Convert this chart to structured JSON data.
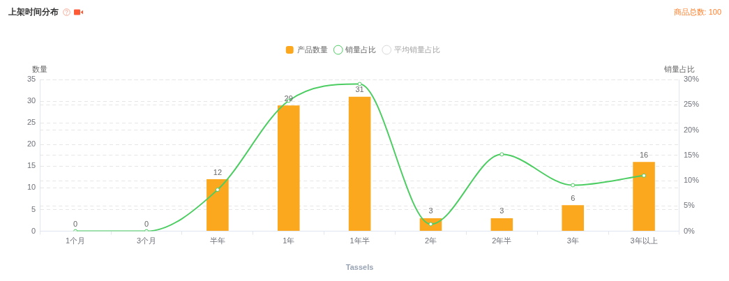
{
  "chart_data": {
    "type": "bar",
    "title": "上架时间分布",
    "annotations": [
      "商品总数: 100"
    ],
    "xlabel": "Tassels",
    "ylabel": "数量",
    "y2label": "销量占比",
    "categories": [
      "1个月",
      "3个月",
      "半年",
      "1年",
      "1年半",
      "2年",
      "2年半",
      "3年",
      "3年以上"
    ],
    "series": [
      {
        "name": "产品数量",
        "color": "#fca81e",
        "values": [
          0,
          0,
          12,
          29,
          31,
          3,
          3,
          6,
          16
        ],
        "value_labels": [
          "0",
          "0",
          "12",
          "29",
          "31",
          "3",
          "3",
          "6",
          "16"
        ]
      },
      {
        "name": "销量占比",
        "type": "line",
        "axis": "y2",
        "color": "#4ccd62",
        "values": [
          0,
          0,
          8.2,
          25.8,
          29.1,
          1.4,
          15.2,
          9.1,
          11.0
        ]
      },
      {
        "name": "平均销量占比",
        "type": "line",
        "axis": "y2",
        "color": "#d9d9d9",
        "values": [
          null,
          null,
          null,
          null,
          null,
          null,
          null,
          null,
          null
        ]
      }
    ],
    "ylim": [
      0,
      35
    ],
    "yticks": [
      0,
      5,
      10,
      15,
      20,
      25,
      30,
      35
    ],
    "y2lim": [
      0,
      30
    ],
    "y2ticks": [
      {
        "value": 0,
        "label": "0%"
      },
      {
        "value": 5,
        "label": "5%"
      },
      {
        "value": 10,
        "label": "10%"
      },
      {
        "value": 15,
        "label": "15%"
      },
      {
        "value": 20,
        "label": "20%"
      },
      {
        "value": 25,
        "label": "25%"
      },
      {
        "value": 30,
        "label": "30%"
      }
    ],
    "grid": "y",
    "legend": "top",
    "marker": "circle"
  }
}
